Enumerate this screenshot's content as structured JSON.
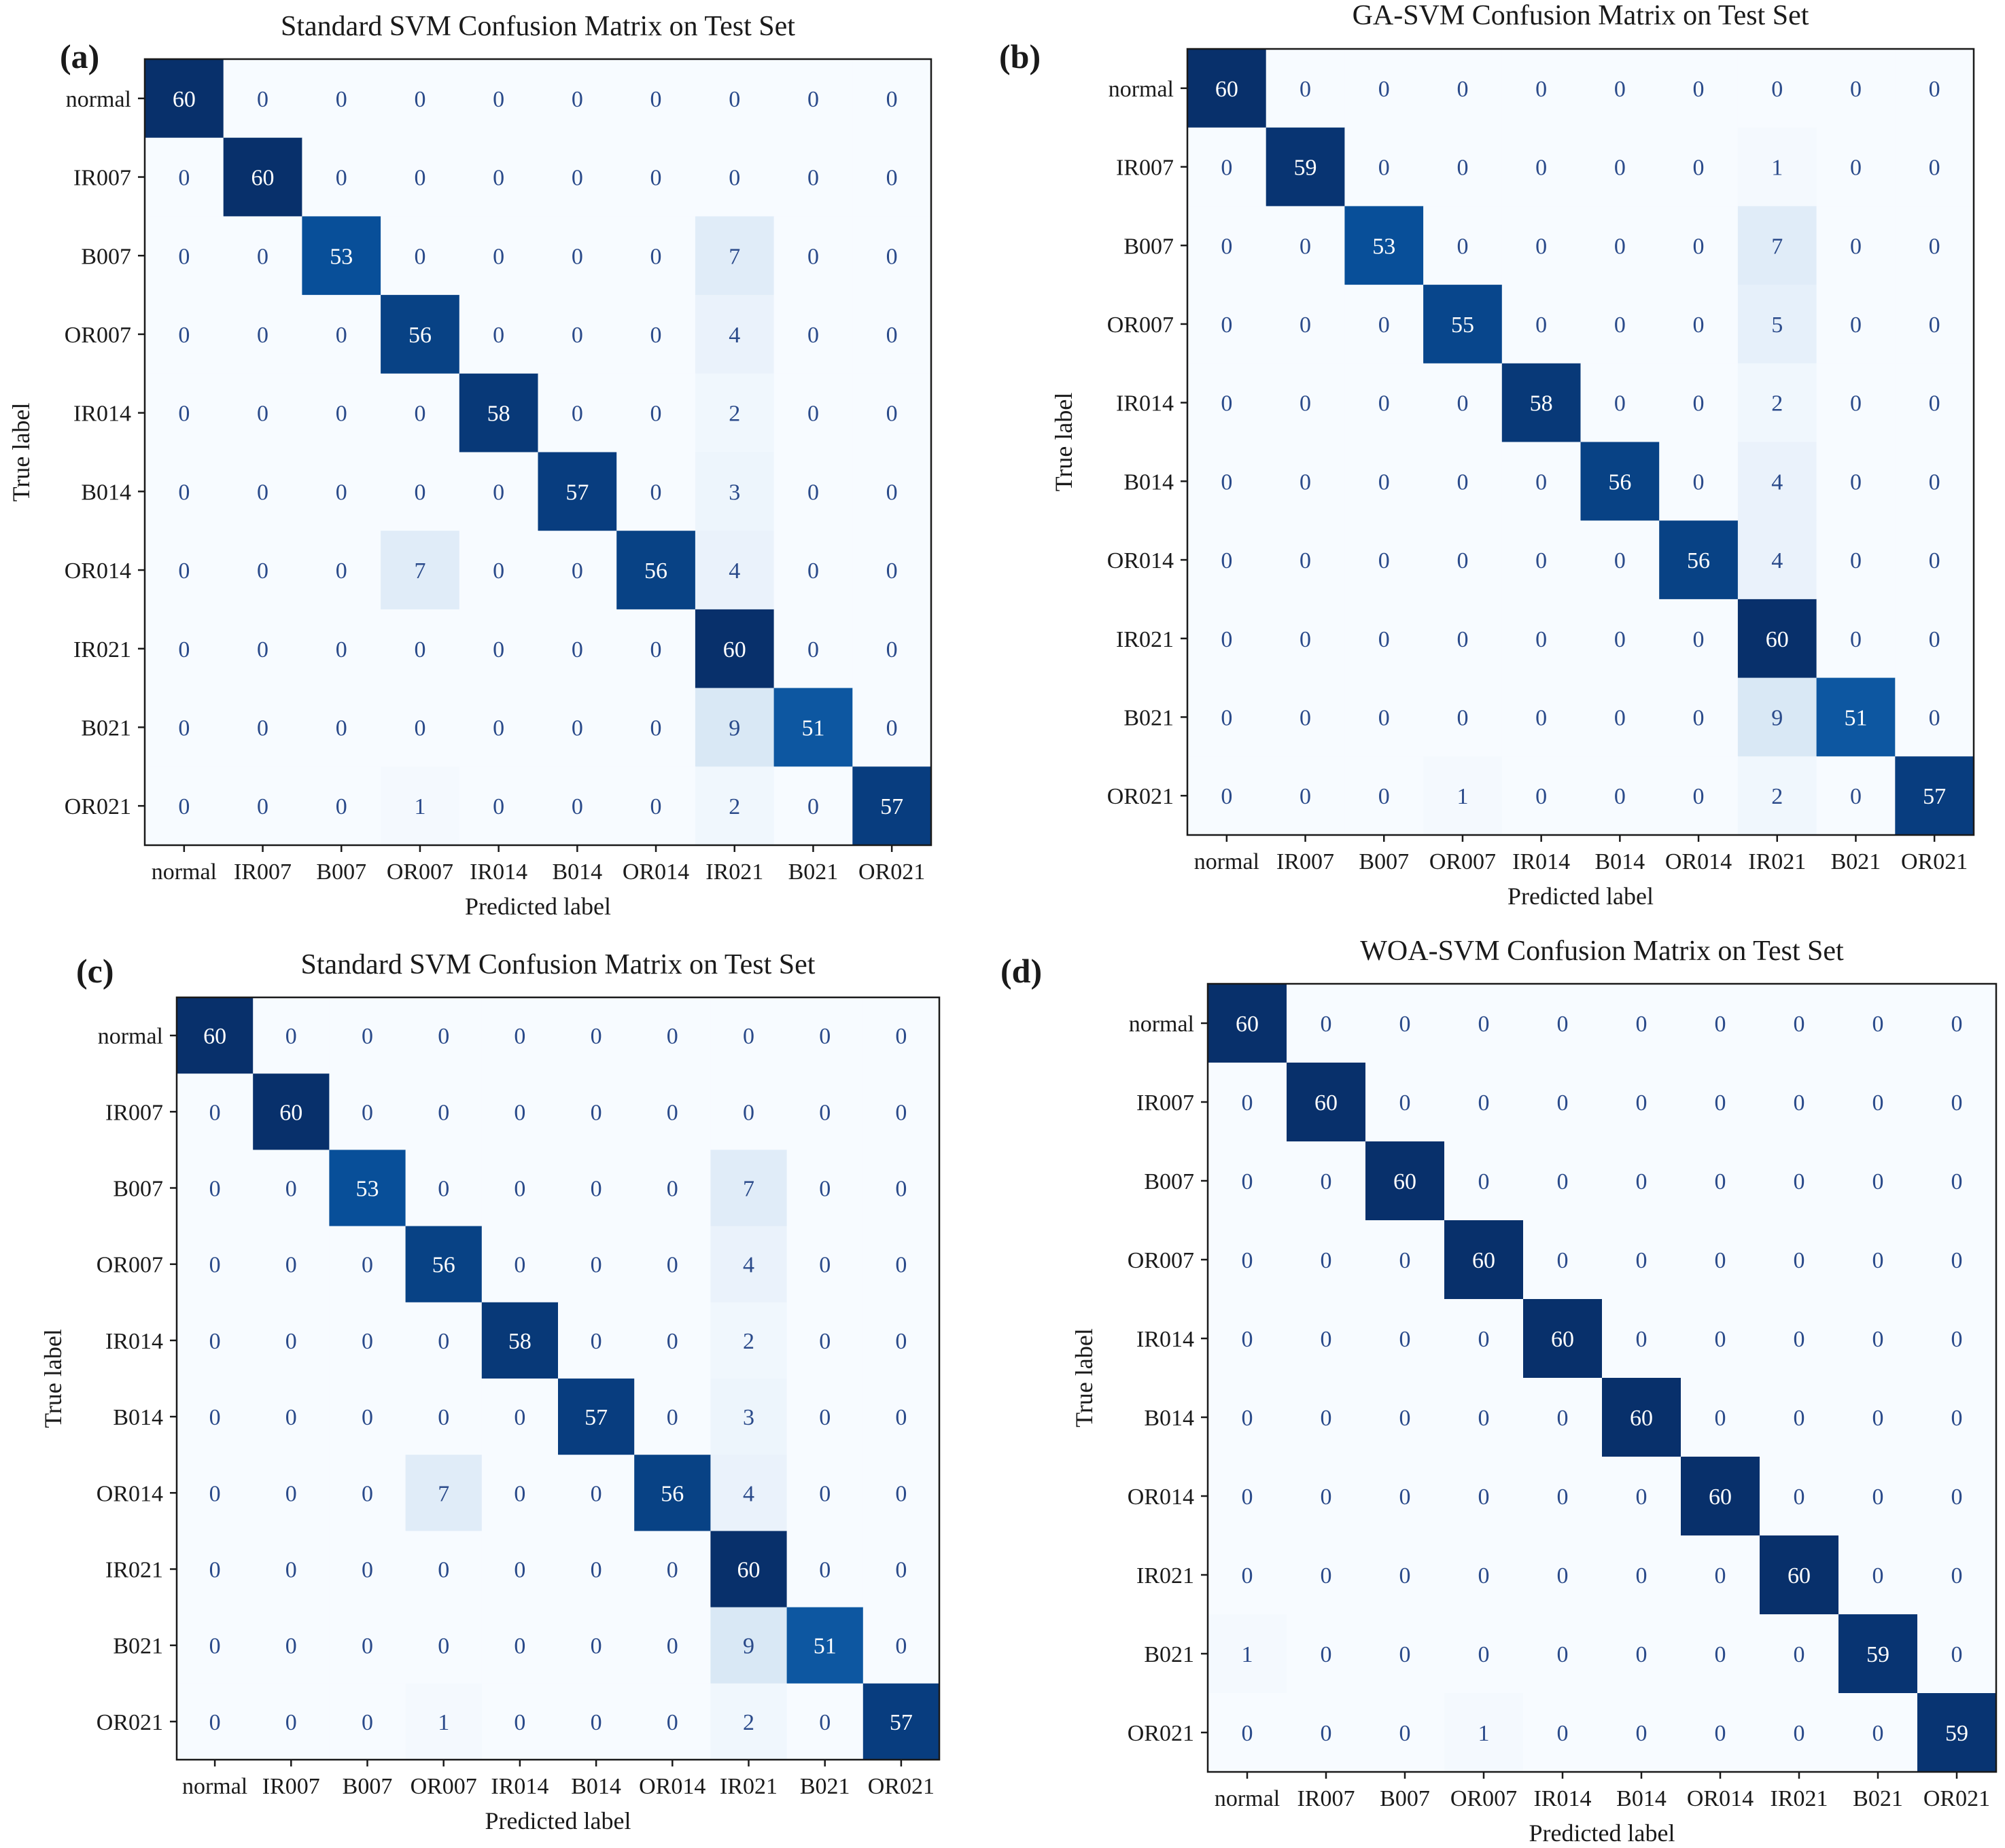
{
  "chart_data": [
    {
      "type": "heatmap",
      "panel": "(a)",
      "title": "Standard SVM Confusion Matrix on Test Set",
      "xlabel": "Predicted label",
      "ylabel": "True label",
      "labels": [
        "normal",
        "IR007",
        "B007",
        "OR007",
        "IR014",
        "B014",
        "OR014",
        "IR021",
        "B021",
        "OR021"
      ],
      "max": 60,
      "matrix": [
        [
          60,
          0,
          0,
          0,
          0,
          0,
          0,
          0,
          0,
          0
        ],
        [
          0,
          60,
          0,
          0,
          0,
          0,
          0,
          0,
          0,
          0
        ],
        [
          0,
          0,
          53,
          0,
          0,
          0,
          0,
          7,
          0,
          0
        ],
        [
          0,
          0,
          0,
          56,
          0,
          0,
          0,
          4,
          0,
          0
        ],
        [
          0,
          0,
          0,
          0,
          58,
          0,
          0,
          2,
          0,
          0
        ],
        [
          0,
          0,
          0,
          0,
          0,
          57,
          0,
          3,
          0,
          0
        ],
        [
          0,
          0,
          0,
          7,
          0,
          0,
          56,
          4,
          0,
          0
        ],
        [
          0,
          0,
          0,
          0,
          0,
          0,
          0,
          60,
          0,
          0
        ],
        [
          0,
          0,
          0,
          0,
          0,
          0,
          0,
          9,
          51,
          0
        ],
        [
          0,
          0,
          0,
          1,
          0,
          0,
          0,
          2,
          0,
          57
        ]
      ]
    },
    {
      "type": "heatmap",
      "panel": "(b)",
      "title": "GA-SVM Confusion Matrix on Test Set",
      "xlabel": "Predicted label",
      "ylabel": "True label",
      "labels": [
        "normal",
        "IR007",
        "B007",
        "OR007",
        "IR014",
        "B014",
        "OR014",
        "IR021",
        "B021",
        "OR021"
      ],
      "max": 60,
      "matrix": [
        [
          60,
          0,
          0,
          0,
          0,
          0,
          0,
          0,
          0,
          0
        ],
        [
          0,
          59,
          0,
          0,
          0,
          0,
          0,
          1,
          0,
          0
        ],
        [
          0,
          0,
          53,
          0,
          0,
          0,
          0,
          7,
          0,
          0
        ],
        [
          0,
          0,
          0,
          55,
          0,
          0,
          0,
          5,
          0,
          0
        ],
        [
          0,
          0,
          0,
          0,
          58,
          0,
          0,
          2,
          0,
          0
        ],
        [
          0,
          0,
          0,
          0,
          0,
          56,
          0,
          4,
          0,
          0
        ],
        [
          0,
          0,
          0,
          0,
          0,
          0,
          56,
          4,
          0,
          0
        ],
        [
          0,
          0,
          0,
          0,
          0,
          0,
          0,
          60,
          0,
          0
        ],
        [
          0,
          0,
          0,
          0,
          0,
          0,
          0,
          9,
          51,
          0
        ],
        [
          0,
          0,
          0,
          1,
          0,
          0,
          0,
          2,
          0,
          57
        ]
      ]
    },
    {
      "type": "heatmap",
      "panel": "(c)",
      "title": "Standard SVM Confusion Matrix on Test Set",
      "xlabel": "Predicted label",
      "ylabel": "True label",
      "labels": [
        "normal",
        "IR007",
        "B007",
        "OR007",
        "IR014",
        "B014",
        "OR014",
        "IR021",
        "B021",
        "OR021"
      ],
      "max": 60,
      "matrix": [
        [
          60,
          0,
          0,
          0,
          0,
          0,
          0,
          0,
          0,
          0
        ],
        [
          0,
          60,
          0,
          0,
          0,
          0,
          0,
          0,
          0,
          0
        ],
        [
          0,
          0,
          53,
          0,
          0,
          0,
          0,
          7,
          0,
          0
        ],
        [
          0,
          0,
          0,
          56,
          0,
          0,
          0,
          4,
          0,
          0
        ],
        [
          0,
          0,
          0,
          0,
          58,
          0,
          0,
          2,
          0,
          0
        ],
        [
          0,
          0,
          0,
          0,
          0,
          57,
          0,
          3,
          0,
          0
        ],
        [
          0,
          0,
          0,
          7,
          0,
          0,
          56,
          4,
          0,
          0
        ],
        [
          0,
          0,
          0,
          0,
          0,
          0,
          0,
          60,
          0,
          0
        ],
        [
          0,
          0,
          0,
          0,
          0,
          0,
          0,
          9,
          51,
          0
        ],
        [
          0,
          0,
          0,
          1,
          0,
          0,
          0,
          2,
          0,
          57
        ]
      ]
    },
    {
      "type": "heatmap",
      "panel": "(d)",
      "title": "WOA-SVM Confusion Matrix on Test Set",
      "xlabel": "Predicted label",
      "ylabel": "True label",
      "labels": [
        "normal",
        "IR007",
        "B007",
        "OR007",
        "IR014",
        "B014",
        "OR014",
        "IR021",
        "B021",
        "OR021"
      ],
      "max": 60,
      "matrix": [
        [
          60,
          0,
          0,
          0,
          0,
          0,
          0,
          0,
          0,
          0
        ],
        [
          0,
          60,
          0,
          0,
          0,
          0,
          0,
          0,
          0,
          0
        ],
        [
          0,
          0,
          60,
          0,
          0,
          0,
          0,
          0,
          0,
          0
        ],
        [
          0,
          0,
          0,
          60,
          0,
          0,
          0,
          0,
          0,
          0
        ],
        [
          0,
          0,
          0,
          0,
          60,
          0,
          0,
          0,
          0,
          0
        ],
        [
          0,
          0,
          0,
          0,
          0,
          60,
          0,
          0,
          0,
          0
        ],
        [
          0,
          0,
          0,
          0,
          0,
          0,
          60,
          0,
          0,
          0
        ],
        [
          0,
          0,
          0,
          0,
          0,
          0,
          0,
          60,
          0,
          0
        ],
        [
          1,
          0,
          0,
          0,
          0,
          0,
          0,
          0,
          59,
          0
        ],
        [
          0,
          0,
          0,
          1,
          0,
          0,
          0,
          0,
          0,
          59
        ]
      ]
    }
  ]
}
